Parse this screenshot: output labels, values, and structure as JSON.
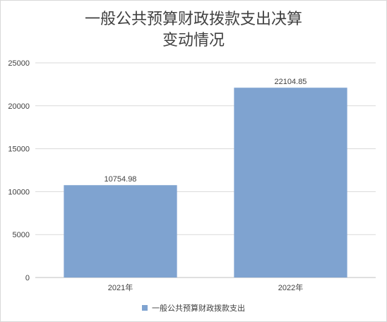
{
  "chart_data": {
    "type": "bar",
    "title": "一般公共预算财政拨款支出决算\n变动情况",
    "categories": [
      "2021年",
      "2022年"
    ],
    "series": [
      {
        "name": "一般公共预算财政拨款支出",
        "values": [
          10754.98,
          22104.85
        ],
        "data_labels": [
          "10754.98",
          "22104.85"
        ],
        "color": "#7fa3d0"
      }
    ],
    "ylim": [
      0,
      25000
    ],
    "yticks": [
      0,
      5000,
      10000,
      15000,
      20000,
      25000
    ],
    "ytick_labels": [
      "0",
      "5000",
      "10000",
      "15000",
      "20000",
      "25000"
    ],
    "grid": true,
    "legend_position": "bottom"
  }
}
